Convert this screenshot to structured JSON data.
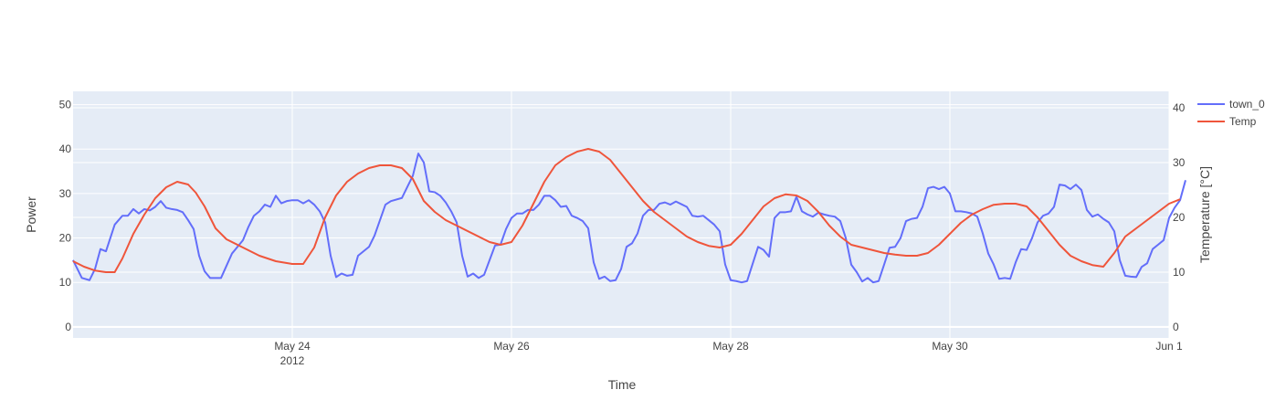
{
  "chart_data": {
    "type": "line",
    "xlabel": "Time",
    "ylabel": "Power",
    "y2label": "Temperature [°C]",
    "x_range_days": [
      0,
      10
    ],
    "x_ticks": [
      {
        "day": 2,
        "label": "May 24",
        "sub": "2012"
      },
      {
        "day": 4,
        "label": "May 26",
        "sub": ""
      },
      {
        "day": 6,
        "label": "May 28",
        "sub": ""
      },
      {
        "day": 8,
        "label": "May 30",
        "sub": ""
      },
      {
        "day": 10,
        "label": "Jun 1",
        "sub": ""
      }
    ],
    "y_range": [
      -2.5,
      53
    ],
    "y_ticks": [
      0,
      10,
      20,
      30,
      40,
      50
    ],
    "y2_range": [
      -2,
      43
    ],
    "y2_ticks": [
      0,
      10,
      20,
      30,
      40
    ],
    "grid": true,
    "legend_position": "top-right",
    "series": [
      {
        "name": "town_0",
        "axis": "y",
        "color": "#636efa",
        "points": [
          [
            0.0,
            15.0
          ],
          [
            0.08,
            11.0
          ],
          [
            0.15,
            10.5
          ],
          [
            0.2,
            13.0
          ],
          [
            0.25,
            17.5
          ],
          [
            0.3,
            17.0
          ],
          [
            0.38,
            23.0
          ],
          [
            0.45,
            25.0
          ],
          [
            0.5,
            25.0
          ],
          [
            0.55,
            26.5
          ],
          [
            0.6,
            25.5
          ],
          [
            0.65,
            26.5
          ],
          [
            0.7,
            26.2
          ],
          [
            0.75,
            27.0
          ],
          [
            0.8,
            28.3
          ],
          [
            0.85,
            26.8
          ],
          [
            0.9,
            26.5
          ],
          [
            0.95,
            26.3
          ],
          [
            1.0,
            25.8
          ],
          [
            1.05,
            24.0
          ],
          [
            1.1,
            22.0
          ],
          [
            1.15,
            16.0
          ],
          [
            1.2,
            12.5
          ],
          [
            1.25,
            11.0
          ],
          [
            1.35,
            11.0
          ],
          [
            1.45,
            16.5
          ],
          [
            1.55,
            19.5
          ],
          [
            1.6,
            22.5
          ],
          [
            1.65,
            25.0
          ],
          [
            1.7,
            26.0
          ],
          [
            1.75,
            27.5
          ],
          [
            1.8,
            27.0
          ],
          [
            1.85,
            29.5
          ],
          [
            1.9,
            27.8
          ],
          [
            1.95,
            28.3
          ],
          [
            2.0,
            28.5
          ],
          [
            2.05,
            28.5
          ],
          [
            2.1,
            27.8
          ],
          [
            2.15,
            28.5
          ],
          [
            2.2,
            27.5
          ],
          [
            2.25,
            26.0
          ],
          [
            2.3,
            23.5
          ],
          [
            2.35,
            16.0
          ],
          [
            2.4,
            11.2
          ],
          [
            2.45,
            12.0
          ],
          [
            2.5,
            11.5
          ],
          [
            2.55,
            11.7
          ],
          [
            2.6,
            16.0
          ],
          [
            2.7,
            18.0
          ],
          [
            2.75,
            20.5
          ],
          [
            2.8,
            24.0
          ],
          [
            2.85,
            27.5
          ],
          [
            2.9,
            28.3
          ],
          [
            3.0,
            29.0
          ],
          [
            3.05,
            31.5
          ],
          [
            3.1,
            34.0
          ],
          [
            3.15,
            39.0
          ],
          [
            3.2,
            37.0
          ],
          [
            3.25,
            30.5
          ],
          [
            3.3,
            30.3
          ],
          [
            3.35,
            29.5
          ],
          [
            3.4,
            28.0
          ],
          [
            3.45,
            26.0
          ],
          [
            3.5,
            23.5
          ],
          [
            3.55,
            16.0
          ],
          [
            3.6,
            11.3
          ],
          [
            3.65,
            12.0
          ],
          [
            3.7,
            11.0
          ],
          [
            3.75,
            11.7
          ],
          [
            3.8,
            15.0
          ],
          [
            3.85,
            18.3
          ],
          [
            3.9,
            18.5
          ],
          [
            3.95,
            22.0
          ],
          [
            4.0,
            24.5
          ],
          [
            4.05,
            25.5
          ],
          [
            4.1,
            25.5
          ],
          [
            4.15,
            26.3
          ],
          [
            4.2,
            26.3
          ],
          [
            4.25,
            27.5
          ],
          [
            4.3,
            29.5
          ],
          [
            4.35,
            29.5
          ],
          [
            4.4,
            28.5
          ],
          [
            4.45,
            27.0
          ],
          [
            4.5,
            27.2
          ],
          [
            4.55,
            25.0
          ],
          [
            4.6,
            24.5
          ],
          [
            4.65,
            23.8
          ],
          [
            4.7,
            22.2
          ],
          [
            4.75,
            14.5
          ],
          [
            4.8,
            10.8
          ],
          [
            4.85,
            11.3
          ],
          [
            4.9,
            10.3
          ],
          [
            4.95,
            10.5
          ],
          [
            5.0,
            13.0
          ],
          [
            5.05,
            18.0
          ],
          [
            5.1,
            18.8
          ],
          [
            5.15,
            21.0
          ],
          [
            5.2,
            25.0
          ],
          [
            5.25,
            26.3
          ],
          [
            5.3,
            26.3
          ],
          [
            5.35,
            27.7
          ],
          [
            5.4,
            28.0
          ],
          [
            5.45,
            27.5
          ],
          [
            5.5,
            28.2
          ],
          [
            5.55,
            27.6
          ],
          [
            5.6,
            27.0
          ],
          [
            5.65,
            25.0
          ],
          [
            5.7,
            24.8
          ],
          [
            5.75,
            25.0
          ],
          [
            5.8,
            24.0
          ],
          [
            5.85,
            23.0
          ],
          [
            5.9,
            21.5
          ],
          [
            5.95,
            14.0
          ],
          [
            6.0,
            10.5
          ],
          [
            6.05,
            10.3
          ],
          [
            6.1,
            10.0
          ],
          [
            6.15,
            10.3
          ],
          [
            6.25,
            18.0
          ],
          [
            6.3,
            17.3
          ],
          [
            6.35,
            15.8
          ],
          [
            6.4,
            24.5
          ],
          [
            6.45,
            25.8
          ],
          [
            6.5,
            25.8
          ],
          [
            6.55,
            26.0
          ],
          [
            6.6,
            29.3
          ],
          [
            6.65,
            26.0
          ],
          [
            6.7,
            25.3
          ],
          [
            6.75,
            24.8
          ],
          [
            6.8,
            25.7
          ],
          [
            6.85,
            25.3
          ],
          [
            6.9,
            25.0
          ],
          [
            6.95,
            24.8
          ],
          [
            7.0,
            23.8
          ],
          [
            7.05,
            20.0
          ],
          [
            7.1,
            14.0
          ],
          [
            7.15,
            12.3
          ],
          [
            7.2,
            10.2
          ],
          [
            7.25,
            11.0
          ],
          [
            7.3,
            10.0
          ],
          [
            7.35,
            10.3
          ],
          [
            7.4,
            14.0
          ],
          [
            7.45,
            17.8
          ],
          [
            7.5,
            18.0
          ],
          [
            7.55,
            20.0
          ],
          [
            7.6,
            23.8
          ],
          [
            7.65,
            24.3
          ],
          [
            7.7,
            24.5
          ],
          [
            7.75,
            27.0
          ],
          [
            7.8,
            31.2
          ],
          [
            7.85,
            31.5
          ],
          [
            7.9,
            31.0
          ],
          [
            7.95,
            31.5
          ],
          [
            8.0,
            30.0
          ],
          [
            8.05,
            26.0
          ],
          [
            8.1,
            26.0
          ],
          [
            8.15,
            25.8
          ],
          [
            8.2,
            25.5
          ],
          [
            8.25,
            24.8
          ],
          [
            8.3,
            21.0
          ],
          [
            8.35,
            16.5
          ],
          [
            8.4,
            14.0
          ],
          [
            8.45,
            10.8
          ],
          [
            8.5,
            11.0
          ],
          [
            8.55,
            10.8
          ],
          [
            8.6,
            14.5
          ],
          [
            8.65,
            17.5
          ],
          [
            8.7,
            17.3
          ],
          [
            8.75,
            20.0
          ],
          [
            8.8,
            23.5
          ],
          [
            8.85,
            25.0
          ],
          [
            8.9,
            25.5
          ],
          [
            8.95,
            27.0
          ],
          [
            9.0,
            32.0
          ],
          [
            9.05,
            31.8
          ],
          [
            9.1,
            31.0
          ],
          [
            9.15,
            32.0
          ],
          [
            9.2,
            30.8
          ],
          [
            9.25,
            26.3
          ],
          [
            9.3,
            24.8
          ],
          [
            9.35,
            25.3
          ],
          [
            9.4,
            24.3
          ],
          [
            9.45,
            23.5
          ],
          [
            9.5,
            21.5
          ],
          [
            9.55,
            15.0
          ],
          [
            9.6,
            11.5
          ],
          [
            9.65,
            11.3
          ],
          [
            9.7,
            11.2
          ],
          [
            9.75,
            13.5
          ],
          [
            9.8,
            14.3
          ],
          [
            9.85,
            17.5
          ],
          [
            9.9,
            18.5
          ],
          [
            9.95,
            19.5
          ],
          [
            10.0,
            24.5
          ],
          [
            10.05,
            26.8
          ],
          [
            10.1,
            28.5
          ],
          [
            10.15,
            33.0
          ]
        ]
      },
      {
        "name": "Temp",
        "axis": "y2",
        "color": "#ef553b",
        "points": [
          [
            0.0,
            12.0
          ],
          [
            0.1,
            11.0
          ],
          [
            0.2,
            10.3
          ],
          [
            0.3,
            10.0
          ],
          [
            0.38,
            10.0
          ],
          [
            0.45,
            12.5
          ],
          [
            0.55,
            17.0
          ],
          [
            0.65,
            20.5
          ],
          [
            0.75,
            23.5
          ],
          [
            0.85,
            25.5
          ],
          [
            0.95,
            26.5
          ],
          [
            1.05,
            26.0
          ],
          [
            1.12,
            24.5
          ],
          [
            1.2,
            22.0
          ],
          [
            1.3,
            18.0
          ],
          [
            1.4,
            16.0
          ],
          [
            1.55,
            14.5
          ],
          [
            1.7,
            13.0
          ],
          [
            1.85,
            12.0
          ],
          [
            2.0,
            11.5
          ],
          [
            2.1,
            11.5
          ],
          [
            2.2,
            14.5
          ],
          [
            2.3,
            20.0
          ],
          [
            2.4,
            24.0
          ],
          [
            2.5,
            26.5
          ],
          [
            2.6,
            28.0
          ],
          [
            2.7,
            29.0
          ],
          [
            2.8,
            29.5
          ],
          [
            2.9,
            29.5
          ],
          [
            3.0,
            29.0
          ],
          [
            3.1,
            27.0
          ],
          [
            3.2,
            23.0
          ],
          [
            3.3,
            21.0
          ],
          [
            3.4,
            19.5
          ],
          [
            3.5,
            18.5
          ],
          [
            3.6,
            17.5
          ],
          [
            3.7,
            16.5
          ],
          [
            3.8,
            15.5
          ],
          [
            3.9,
            15.0
          ],
          [
            4.0,
            15.5
          ],
          [
            4.1,
            18.5
          ],
          [
            4.2,
            22.5
          ],
          [
            4.3,
            26.5
          ],
          [
            4.4,
            29.5
          ],
          [
            4.5,
            31.0
          ],
          [
            4.6,
            32.0
          ],
          [
            4.7,
            32.5
          ],
          [
            4.8,
            32.0
          ],
          [
            4.9,
            30.5
          ],
          [
            5.0,
            28.0
          ],
          [
            5.1,
            25.5
          ],
          [
            5.2,
            23.0
          ],
          [
            5.3,
            21.0
          ],
          [
            5.4,
            19.5
          ],
          [
            5.5,
            18.0
          ],
          [
            5.6,
            16.5
          ],
          [
            5.7,
            15.5
          ],
          [
            5.8,
            14.8
          ],
          [
            5.9,
            14.5
          ],
          [
            6.0,
            15.0
          ],
          [
            6.1,
            17.0
          ],
          [
            6.2,
            19.5
          ],
          [
            6.3,
            22.0
          ],
          [
            6.4,
            23.5
          ],
          [
            6.5,
            24.2
          ],
          [
            6.6,
            24.0
          ],
          [
            6.7,
            23.0
          ],
          [
            6.8,
            21.0
          ],
          [
            6.9,
            18.5
          ],
          [
            7.0,
            16.5
          ],
          [
            7.1,
            15.0
          ],
          [
            7.2,
            14.5
          ],
          [
            7.3,
            14.0
          ],
          [
            7.4,
            13.5
          ],
          [
            7.5,
            13.2
          ],
          [
            7.6,
            13.0
          ],
          [
            7.7,
            13.0
          ],
          [
            7.8,
            13.5
          ],
          [
            7.9,
            15.0
          ],
          [
            8.0,
            17.0
          ],
          [
            8.1,
            19.0
          ],
          [
            8.2,
            20.5
          ],
          [
            8.3,
            21.5
          ],
          [
            8.4,
            22.3
          ],
          [
            8.5,
            22.5
          ],
          [
            8.6,
            22.5
          ],
          [
            8.7,
            22.0
          ],
          [
            8.8,
            20.0
          ],
          [
            8.9,
            17.5
          ],
          [
            9.0,
            15.0
          ],
          [
            9.1,
            13.0
          ],
          [
            9.2,
            12.0
          ],
          [
            9.3,
            11.3
          ],
          [
            9.4,
            11.0
          ],
          [
            9.5,
            13.5
          ],
          [
            9.6,
            16.5
          ],
          [
            9.7,
            18.0
          ],
          [
            9.8,
            19.5
          ],
          [
            9.9,
            21.0
          ],
          [
            10.0,
            22.5
          ],
          [
            10.1,
            23.3
          ]
        ]
      }
    ]
  }
}
